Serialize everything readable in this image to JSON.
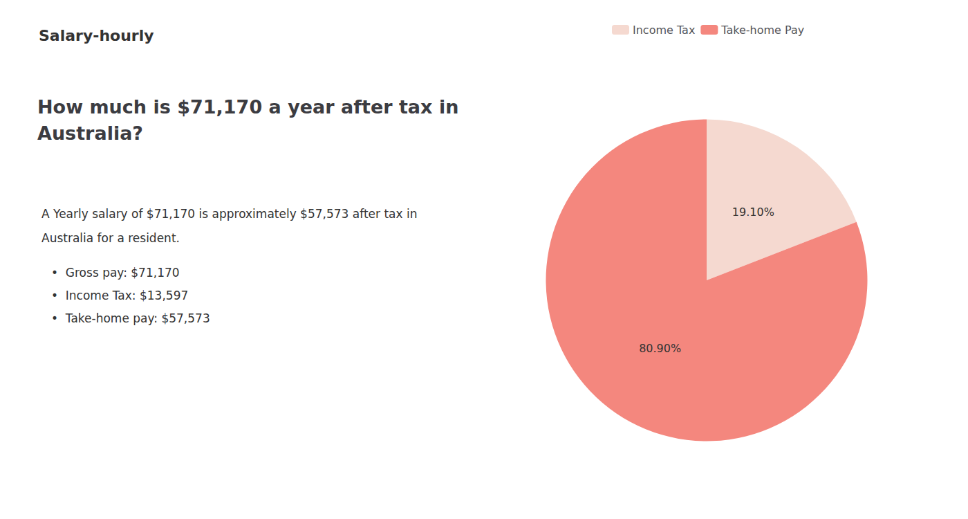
{
  "chart_data": {
    "type": "pie",
    "title": "How much is $71,170 a year after tax in\nAustralia?",
    "categories": [
      "Income Tax",
      "Take-home Pay"
    ],
    "values": [
      19.1,
      80.9
    ],
    "value_labels": [
      "19.10%",
      "80.90%"
    ],
    "colors": [
      "#f5d9d0",
      "#f4877e"
    ],
    "data_labels": true,
    "legend": "top",
    "annotations": [
      "S",
      "alary-hourly",
      "A Yearly salary of $71,170 is approximately $57,573 after tax in",
      "Australia for a resident.",
      "•  Gross pay: $71,170",
      "•  Income Tax: $13,597",
      "•  Take-home pay: $57,573"
    ]
  }
}
